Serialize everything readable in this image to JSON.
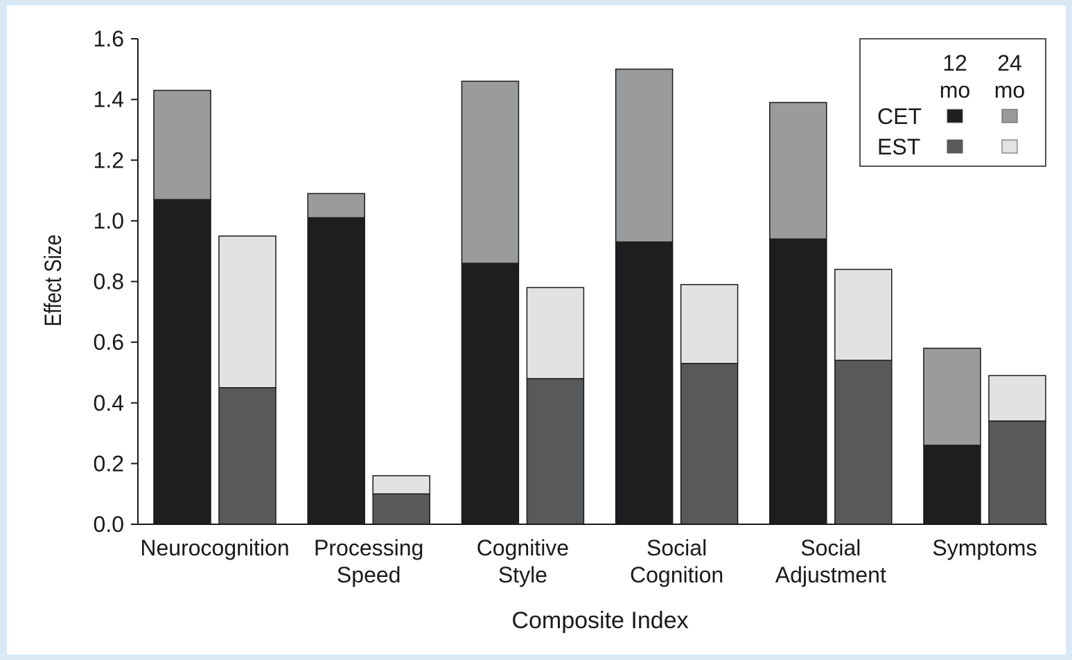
{
  "chart_data": {
    "type": "bar",
    "stacked": true,
    "grid": false,
    "legend_position": "top-right",
    "xlabel": "Composite Index",
    "ylabel": "Effect Size",
    "ylim": [
      0,
      1.6
    ],
    "yticks": [
      "0.0",
      "0.2",
      "0.4",
      "0.6",
      "0.8",
      "1.0",
      "1.2",
      "1.4",
      "1.6"
    ],
    "categories": [
      [
        "Neurocognition"
      ],
      [
        "Processing",
        "Speed"
      ],
      [
        "Cognitive",
        "Style"
      ],
      [
        "Social",
        "Cognition"
      ],
      [
        "Social",
        "Adjustment"
      ],
      [
        "Symptoms"
      ]
    ],
    "legend": {
      "column_headers": [
        [
          "12",
          "mo"
        ],
        [
          "24",
          "mo"
        ]
      ],
      "row_labels": [
        "CET",
        "EST"
      ]
    },
    "colors": {
      "CET_12": "#1e1e20",
      "CET_24": "#9a9b9d",
      "EST_12": "#58595b",
      "EST_24": "#e2e2e2"
    },
    "series": [
      {
        "group": "CET",
        "segments": [
          {
            "key": "CET_12",
            "values": [
              1.07,
              1.01,
              0.86,
              0.93,
              0.94,
              0.26
            ]
          },
          {
            "key": "CET_24",
            "totals": [
              1.43,
              1.09,
              1.46,
              1.5,
              1.39,
              0.58
            ]
          }
        ]
      },
      {
        "group": "EST",
        "segments": [
          {
            "key": "EST_12",
            "values": [
              0.45,
              0.1,
              0.48,
              0.53,
              0.54,
              0.34
            ]
          },
          {
            "key": "EST_24",
            "totals": [
              0.95,
              0.16,
              0.78,
              0.79,
              0.84,
              0.49
            ]
          }
        ]
      }
    ]
  }
}
